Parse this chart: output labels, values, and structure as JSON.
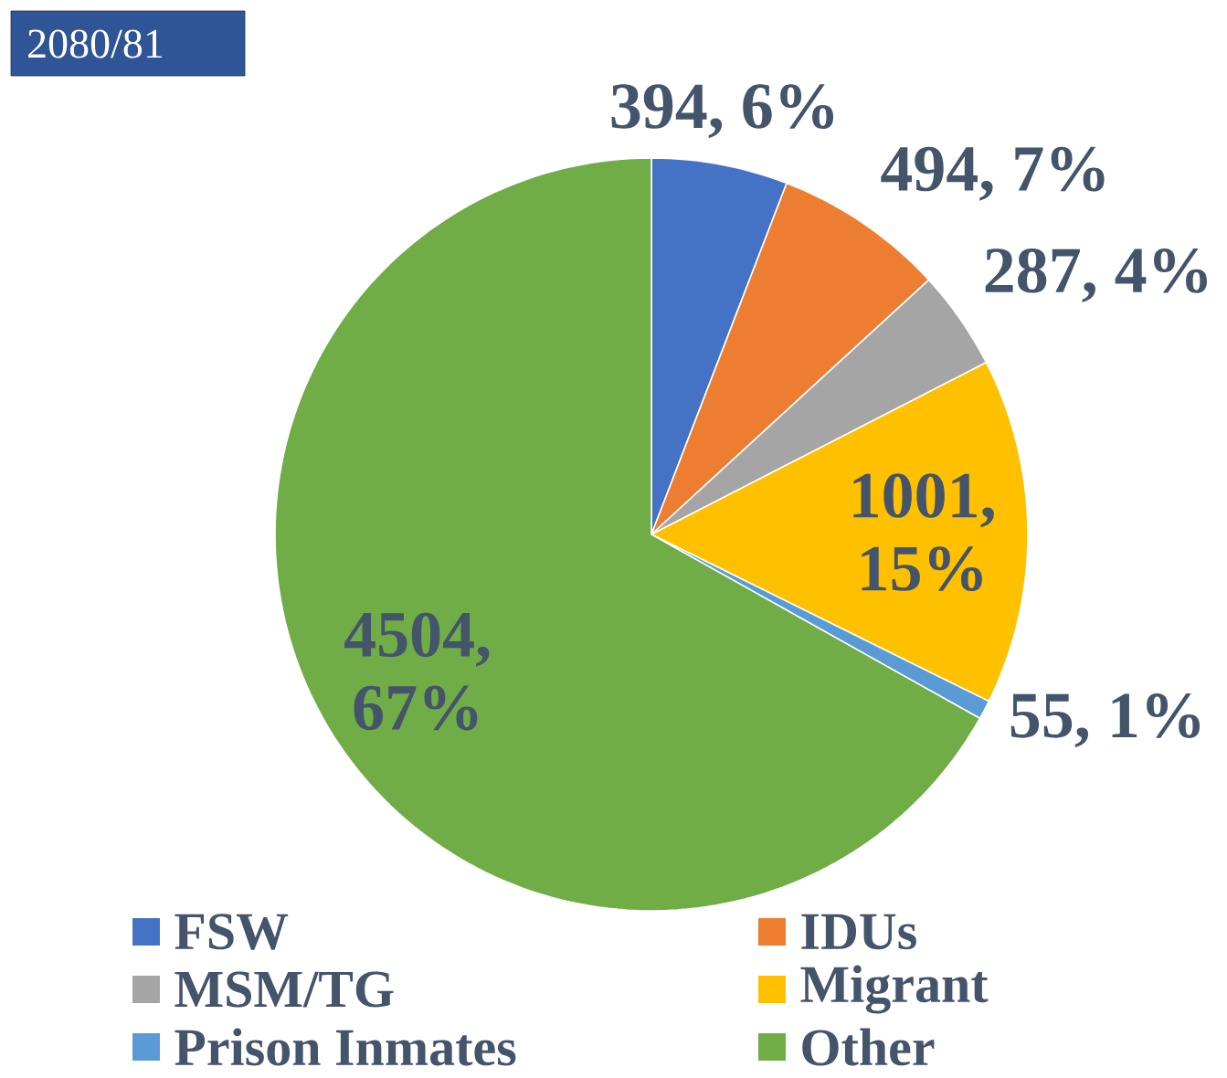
{
  "chart_data": {
    "type": "pie",
    "title": "2080/81",
    "categories": [
      "FSW",
      "IDUs",
      "MSM/TG",
      "Migrant",
      "Prison Inmates",
      "Other"
    ],
    "values": [
      394,
      494,
      287,
      1001,
      55,
      4504
    ],
    "colors": [
      "#4472c4",
      "#ed7d31",
      "#a5a5a5",
      "#ffc000",
      "#5b9bd5",
      "#70ad47"
    ],
    "value_labels": [
      "394, 6%",
      "494, 7%",
      "287, 4%",
      "1001, 15%",
      "55, 1%",
      "4504, 67%"
    ],
    "legend": "bottom"
  }
}
